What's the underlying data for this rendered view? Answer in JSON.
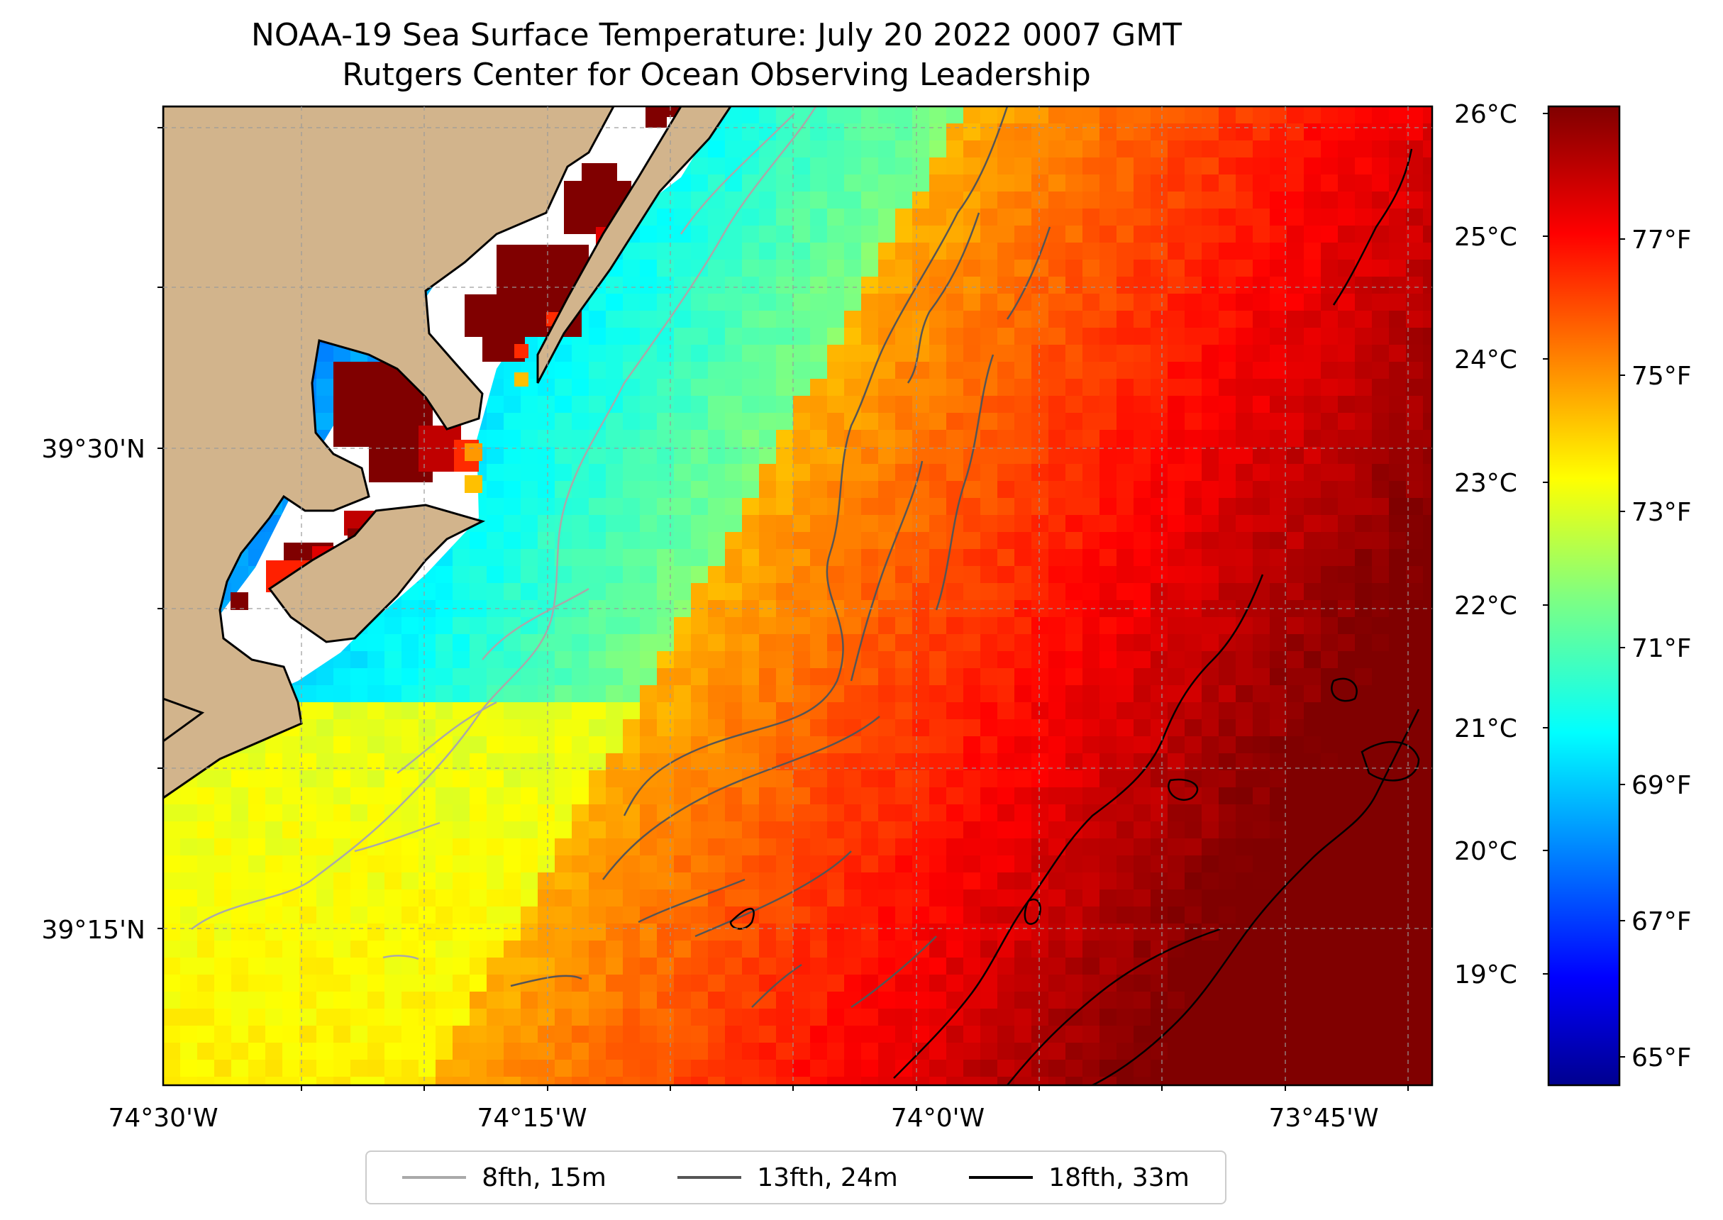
{
  "title": {
    "line1": "NOAA-19 Sea Surface Temperature: July 20 2022 0007 GMT",
    "line2": "Rutgers Center for Ocean Observing Leadership"
  },
  "map": {
    "lon_ticks": [
      "74°30'W",
      "74°15'W",
      "74°0'W",
      "73°45'W"
    ],
    "lat_ticks": [
      "39°30'N",
      "39°15'N"
    ],
    "land_color": "#d2b48c",
    "gridlines": true
  },
  "colorbar": {
    "colormap": "jet",
    "celsius_ticks": [
      "26°C",
      "25°C",
      "24°C",
      "23°C",
      "22°C",
      "21°C",
      "20°C",
      "19°C"
    ],
    "fahrenheit_ticks": [
      "77°F",
      "75°F",
      "73°F",
      "71°F",
      "69°F",
      "67°F",
      "65°F"
    ],
    "range_f": [
      64.4,
      78.8
    ]
  },
  "legend": [
    {
      "label": "8fth, 15m",
      "color": "#a9a9a9"
    },
    {
      "label": "13fth, 24m",
      "color": "#555555"
    },
    {
      "label": "18fth, 33m",
      "color": "#000000"
    }
  ]
}
